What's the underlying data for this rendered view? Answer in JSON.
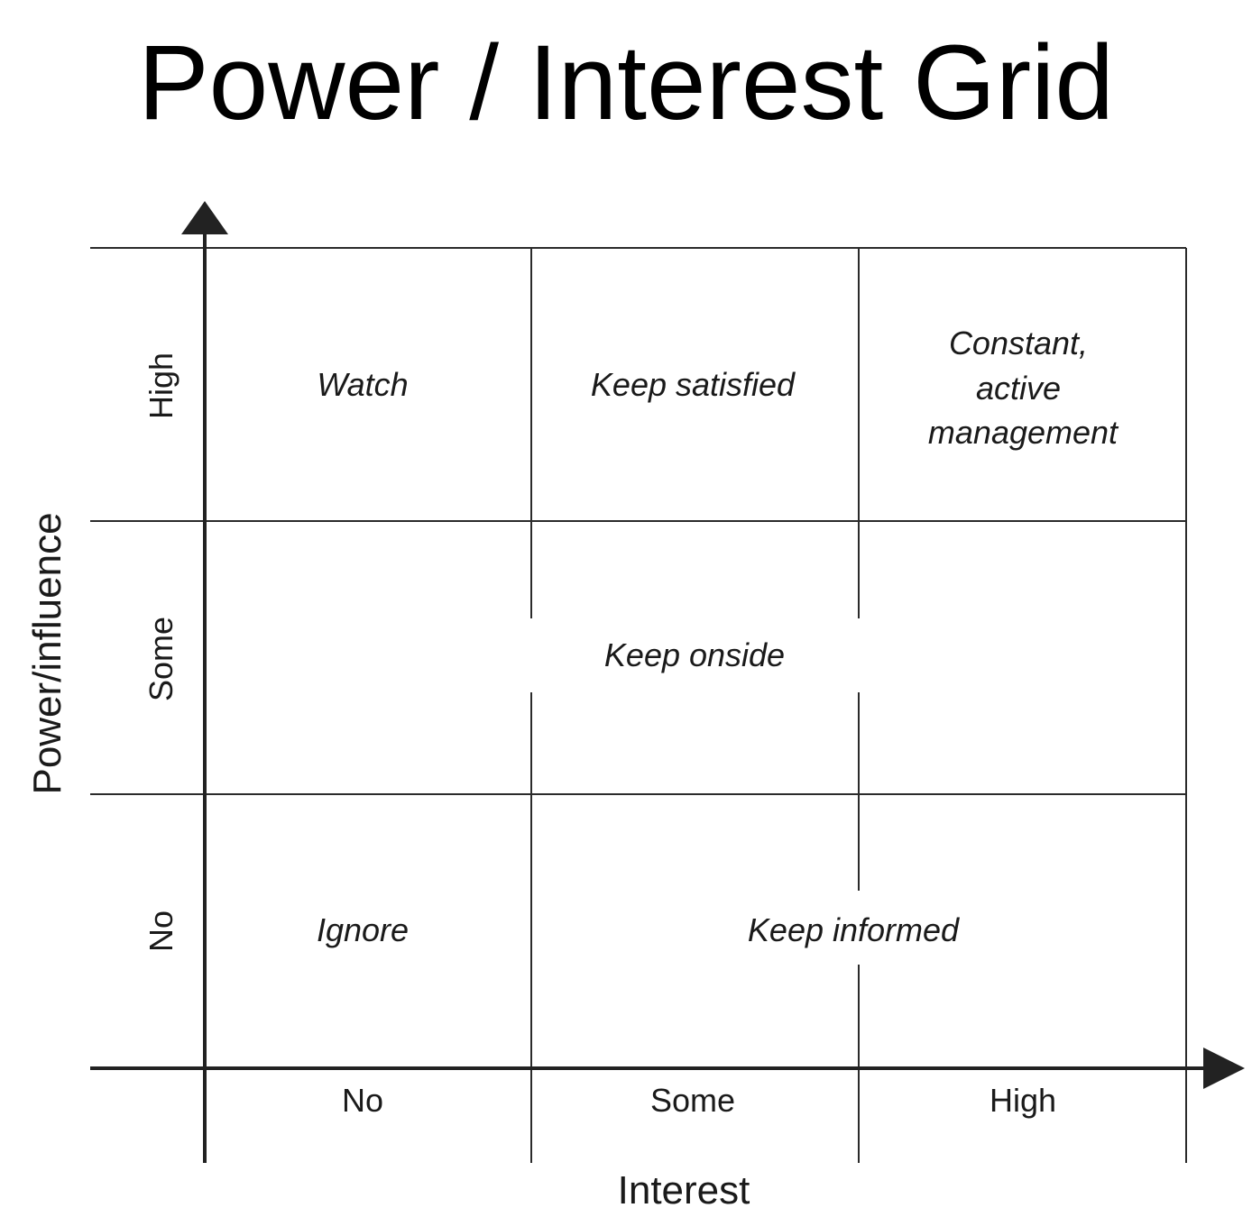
{
  "title": "Power / Interest Grid",
  "axes": {
    "x_label": "Interest",
    "y_label": "Power/influence",
    "x_ticks": [
      "No",
      "Some",
      "High"
    ],
    "y_ticks": [
      "High",
      "Some",
      "No"
    ]
  },
  "cells": {
    "watch": "Watch",
    "keep_satisfied": "Keep satisfied",
    "constant_active_management": [
      "Constant,",
      "active",
      "management"
    ],
    "keep_onside": "Keep onside",
    "ignore": "Ignore",
    "keep_informed": "Keep informed"
  }
}
